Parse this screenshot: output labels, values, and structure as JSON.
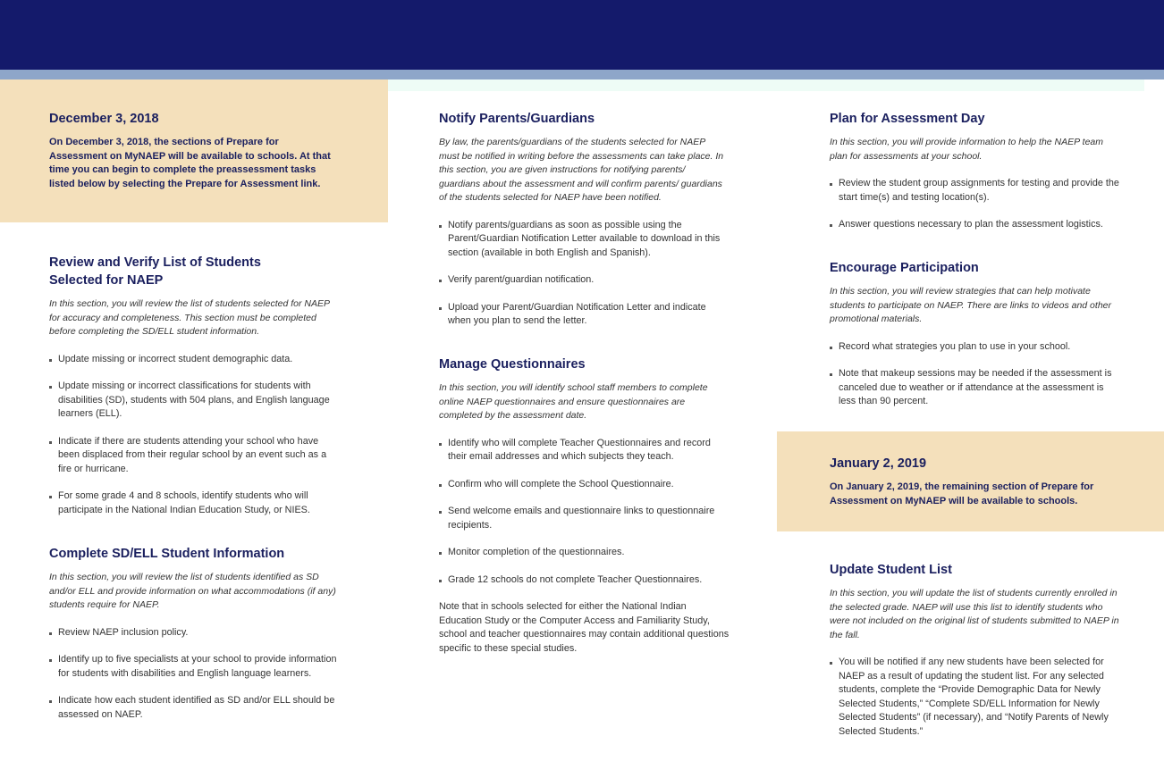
{
  "colors": {
    "banner": "#141a6b",
    "stripe": "#8ea6c9",
    "tan": "#f4e0bb",
    "heading": "#1a1f5e"
  },
  "col1": {
    "dec3": {
      "title": "December 3, 2018",
      "text": "On December 3, 2018, the sections of Prepare for Assessment on MyNAEP will be available to schools. At that time you can begin to complete the preassessment tasks listed below by selecting the Prepare for Assessment link."
    },
    "review": {
      "title": "Review and Verify List of Students Selected for NAEP",
      "intro": "In this section, you will review the list of students selected for NAEP for accuracy and completeness. This section must be completed before completing the SD/ELL student information.",
      "items": [
        "Update missing or incorrect student demographic data.",
        "Update missing or incorrect classifications for students with disabilities (SD), students with 504 plans, and English language learners (ELL).",
        "Indicate if there are students attending your school who have been displaced from their regular school by an event such as a fire or hurricane.",
        "For some grade 4 and 8 schools, identify students who will participate in the National Indian Education Study, or NIES."
      ]
    },
    "sdell": {
      "title": "Complete SD/ELL Student Information",
      "intro": "In this section, you will review the list of students identified as SD and/or ELL and provide information on what accommodations (if any) students require for NAEP.",
      "items": [
        "Review NAEP inclusion policy.",
        "Identify up to five specialists at your school to provide information for students with disabilities and English language learners.",
        "Indicate how each student identified as SD and/or ELL should be assessed on NAEP."
      ]
    }
  },
  "col2": {
    "notify": {
      "title": "Notify Parents/Guardians",
      "intro": "By law, the parents/guardians of the students selected for NAEP must be notified in writing before the assessments can take place. In this section, you are given instructions for notifying parents/ guardians about the assessment and will confirm parents/ guardians of the students selected for NAEP have been notified.",
      "items": [
        "Notify parents/guardians as soon as possible using the Parent/Guardian Notification Letter available to download in this section (available in both English and Spanish).",
        "Verify parent/guardian notification.",
        "Upload your Parent/Guardian Notification Letter and indicate when you plan to send the letter."
      ]
    },
    "manage": {
      "title": "Manage Questionnaires",
      "intro": "In this section, you will identify school staff members to complete online NAEP questionnaires and ensure questionnaires are completed by the assessment date.",
      "items": [
        "Identify who will complete Teacher Questionnaires and record their email addresses and which subjects they teach.",
        "Confirm who will complete the School Questionnaire.",
        "Send welcome emails and questionnaire links to questionnaire recipients.",
        "Monitor completion of the questionnaires.",
        "Grade 12 schools do not complete Teacher Questionnaires."
      ],
      "note": "Note that in schools selected for either the National Indian Education Study or the Computer Access and Familiarity Study, school and teacher questionnaires may contain additional questions specific to these special studies."
    }
  },
  "col3": {
    "plan": {
      "title": "Plan for Assessment Day",
      "intro": "In this section, you will provide information to help the NAEP team plan for assessments at your school.",
      "items": [
        "Review the student group assignments for testing and provide the start time(s) and testing location(s).",
        "Answer questions necessary to plan the assessment logistics."
      ]
    },
    "encourage": {
      "title": "Encourage Participation",
      "intro": "In this section, you will review strategies that can help motivate students to participate on NAEP. There are links to videos and other promotional materials.",
      "items": [
        "Record what strategies you plan to use in your school.",
        "Note that makeup sessions may be needed if the assessment is canceled due to weather or if attendance at the assessment is less than 90 percent."
      ]
    },
    "jan2": {
      "title": "January 2, 2019",
      "text": "On January 2, 2019, the remaining section of Prepare for Assessment on MyNAEP will be available to schools."
    },
    "update": {
      "title": "Update Student List",
      "intro": "In this section, you will update the list of students currently enrolled in the selected grade. NAEP will use this list to identify students who were not included on the original list of students submitted to NAEP in the fall.",
      "items": [
        "You will be notified if any new students have been selected for NAEP as a result of updating the student list. For any selected students, complete the “Provide Demographic Data for Newly Selected Students,” “Complete SD/ELL Information for Newly Selected Students” (if necessary), and “Notify Parents of Newly Selected Students.”"
      ]
    }
  }
}
